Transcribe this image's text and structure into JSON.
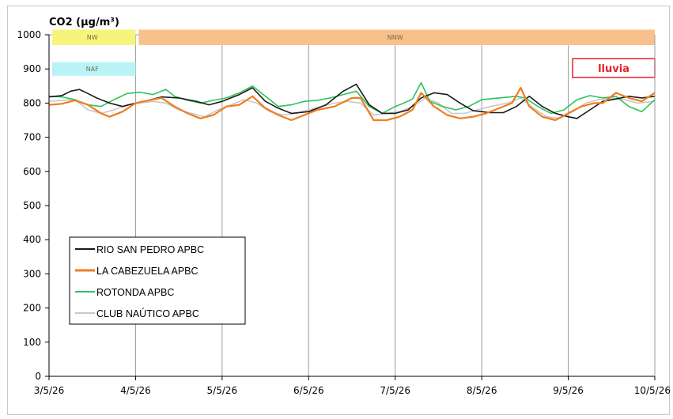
{
  "chart_data": {
    "type": "line",
    "title": "CO2 (µg/m³)",
    "xlabel": "",
    "ylabel": "",
    "ylim": [
      0,
      1000
    ],
    "yticks": [
      0,
      100,
      200,
      300,
      400,
      500,
      600,
      700,
      800,
      900,
      1000
    ],
    "xlim": [
      0,
      7
    ],
    "xtick_labels": [
      "3/5/26",
      "4/5/26",
      "5/5/26",
      "6/5/26",
      "7/5/26",
      "8/5/26",
      "9/5/26",
      "10/5/26"
    ],
    "grid": "vertical lines at each day",
    "legend_position": "bottom-left",
    "series": [
      {
        "name": "RIO SAN PEDRO APBC",
        "color": "#1a1a1a",
        "points": [
          [
            0,
            818
          ],
          [
            0.15,
            822
          ],
          [
            0.25,
            835
          ],
          [
            0.35,
            840
          ],
          [
            0.45,
            828
          ],
          [
            0.55,
            815
          ],
          [
            0.7,
            800
          ],
          [
            0.85,
            790
          ],
          [
            1.0,
            800
          ],
          [
            1.15,
            808
          ],
          [
            1.3,
            818
          ],
          [
            1.5,
            815
          ],
          [
            1.7,
            805
          ],
          [
            1.85,
            795
          ],
          [
            2.0,
            805
          ],
          [
            2.2,
            825
          ],
          [
            2.35,
            845
          ],
          [
            2.5,
            805
          ],
          [
            2.65,
            785
          ],
          [
            2.8,
            770
          ],
          [
            3.0,
            775
          ],
          [
            3.2,
            795
          ],
          [
            3.4,
            835
          ],
          [
            3.55,
            855
          ],
          [
            3.7,
            795
          ],
          [
            3.85,
            770
          ],
          [
            4.0,
            770
          ],
          [
            4.15,
            780
          ],
          [
            4.3,
            815
          ],
          [
            4.45,
            830
          ],
          [
            4.6,
            825
          ],
          [
            4.75,
            800
          ],
          [
            4.9,
            778
          ],
          [
            5.1,
            772
          ],
          [
            5.25,
            772
          ],
          [
            5.4,
            790
          ],
          [
            5.55,
            820
          ],
          [
            5.7,
            790
          ],
          [
            5.85,
            770
          ],
          [
            6.0,
            760
          ],
          [
            6.1,
            755
          ],
          [
            6.25,
            780
          ],
          [
            6.4,
            805
          ],
          [
            6.55,
            812
          ],
          [
            6.7,
            820
          ],
          [
            6.85,
            815
          ],
          [
            7.0,
            820
          ]
        ]
      },
      {
        "name": "LA CABEZUELA  APBC",
        "color": "#f07d1f",
        "points": [
          [
            0,
            795
          ],
          [
            0.15,
            798
          ],
          [
            0.3,
            808
          ],
          [
            0.45,
            795
          ],
          [
            0.6,
            770
          ],
          [
            0.7,
            760
          ],
          [
            0.85,
            775
          ],
          [
            1.0,
            800
          ],
          [
            1.15,
            808
          ],
          [
            1.3,
            815
          ],
          [
            1.45,
            790
          ],
          [
            1.6,
            770
          ],
          [
            1.75,
            755
          ],
          [
            1.9,
            765
          ],
          [
            2.05,
            790
          ],
          [
            2.2,
            795
          ],
          [
            2.35,
            820
          ],
          [
            2.5,
            785
          ],
          [
            2.65,
            765
          ],
          [
            2.8,
            750
          ],
          [
            2.95,
            765
          ],
          [
            3.1,
            780
          ],
          [
            3.3,
            790
          ],
          [
            3.5,
            815
          ],
          [
            3.6,
            815
          ],
          [
            3.75,
            750
          ],
          [
            3.9,
            750
          ],
          [
            4.05,
            760
          ],
          [
            4.2,
            780
          ],
          [
            4.3,
            830
          ],
          [
            4.45,
            790
          ],
          [
            4.6,
            765
          ],
          [
            4.75,
            755
          ],
          [
            4.9,
            760
          ],
          [
            5.05,
            770
          ],
          [
            5.2,
            785
          ],
          [
            5.35,
            800
          ],
          [
            5.45,
            845
          ],
          [
            5.55,
            790
          ],
          [
            5.7,
            760
          ],
          [
            5.85,
            750
          ],
          [
            6.0,
            770
          ],
          [
            6.15,
            790
          ],
          [
            6.3,
            800
          ],
          [
            6.4,
            800
          ],
          [
            6.55,
            830
          ],
          [
            6.7,
            815
          ],
          [
            6.85,
            805
          ],
          [
            7.0,
            830
          ]
        ]
      },
      {
        "name": "ROTONDA  APBC",
        "color": "#2ec25a",
        "points": [
          [
            0,
            820
          ],
          [
            0.15,
            818
          ],
          [
            0.3,
            810
          ],
          [
            0.45,
            795
          ],
          [
            0.6,
            790
          ],
          [
            0.75,
            810
          ],
          [
            0.9,
            828
          ],
          [
            1.05,
            832
          ],
          [
            1.2,
            825
          ],
          [
            1.35,
            840
          ],
          [
            1.45,
            820
          ],
          [
            1.6,
            808
          ],
          [
            1.75,
            800
          ],
          [
            1.9,
            808
          ],
          [
            2.05,
            815
          ],
          [
            2.2,
            830
          ],
          [
            2.35,
            850
          ],
          [
            2.5,
            820
          ],
          [
            2.65,
            790
          ],
          [
            2.8,
            795
          ],
          [
            2.95,
            805
          ],
          [
            3.1,
            808
          ],
          [
            3.25,
            815
          ],
          [
            3.4,
            825
          ],
          [
            3.55,
            835
          ],
          [
            3.7,
            790
          ],
          [
            3.85,
            770
          ],
          [
            4.0,
            790
          ],
          [
            4.1,
            800
          ],
          [
            4.2,
            812
          ],
          [
            4.3,
            860
          ],
          [
            4.4,
            805
          ],
          [
            4.55,
            790
          ],
          [
            4.7,
            780
          ],
          [
            4.85,
            790
          ],
          [
            5.0,
            810
          ],
          [
            5.2,
            815
          ],
          [
            5.4,
            820
          ],
          [
            5.5,
            815
          ],
          [
            5.65,
            790
          ],
          [
            5.8,
            770
          ],
          [
            5.95,
            780
          ],
          [
            6.1,
            810
          ],
          [
            6.25,
            822
          ],
          [
            6.4,
            815
          ],
          [
            6.55,
            820
          ],
          [
            6.7,
            790
          ],
          [
            6.85,
            775
          ],
          [
            7.0,
            810
          ]
        ]
      },
      {
        "name": "CLUB NAÚTICO  APBC",
        "color": "#c8c8c8",
        "points": [
          [
            0,
            805
          ],
          [
            0.15,
            808
          ],
          [
            0.3,
            810
          ],
          [
            0.45,
            780
          ],
          [
            0.6,
            770
          ],
          [
            0.75,
            780
          ],
          [
            0.9,
            795
          ],
          [
            1.05,
            800
          ],
          [
            1.2,
            805
          ],
          [
            1.35,
            800
          ],
          [
            1.5,
            780
          ],
          [
            1.65,
            770
          ],
          [
            1.8,
            760
          ],
          [
            1.95,
            780
          ],
          [
            2.1,
            795
          ],
          [
            2.25,
            810
          ],
          [
            2.4,
            800
          ],
          [
            2.55,
            775
          ],
          [
            2.7,
            765
          ],
          [
            2.85,
            770
          ],
          [
            3.0,
            780
          ],
          [
            3.15,
            790
          ],
          [
            3.3,
            800
          ],
          [
            3.45,
            805
          ],
          [
            3.6,
            800
          ],
          [
            3.75,
            765
          ],
          [
            3.9,
            770
          ],
          [
            4.05,
            775
          ],
          [
            4.2,
            790
          ],
          [
            4.35,
            815
          ],
          [
            4.5,
            800
          ],
          [
            4.65,
            770
          ],
          [
            4.8,
            770
          ],
          [
            4.95,
            780
          ],
          [
            5.1,
            790
          ],
          [
            5.3,
            800
          ],
          [
            5.45,
            815
          ],
          [
            5.6,
            785
          ],
          [
            5.75,
            760
          ],
          [
            5.9,
            755
          ],
          [
            6.05,
            775
          ],
          [
            6.2,
            800
          ],
          [
            6.35,
            810
          ],
          [
            6.5,
            815
          ],
          [
            6.65,
            810
          ],
          [
            6.8,
            800
          ],
          [
            7.0,
            805
          ]
        ]
      }
    ],
    "annotations": [
      {
        "text": "NW",
        "x_start": 0,
        "x_end": 1.0,
        "y_low": 970,
        "y_high": 1015,
        "color": "#f6f47a"
      },
      {
        "text": "NNW",
        "x_start": 1.0,
        "x_end": 7.0,
        "y_low": 970,
        "y_high": 1015,
        "color": "#f8c08a"
      },
      {
        "text": "NAF",
        "x_start": 0,
        "x_end": 1.0,
        "y_low": 880,
        "y_high": 920,
        "color": "#b9f3f6"
      },
      {
        "text": "lluvia",
        "x_start": 6.05,
        "x_end": 7.0,
        "y_low": 875,
        "y_high": 930,
        "color": "#e8202a"
      }
    ]
  }
}
